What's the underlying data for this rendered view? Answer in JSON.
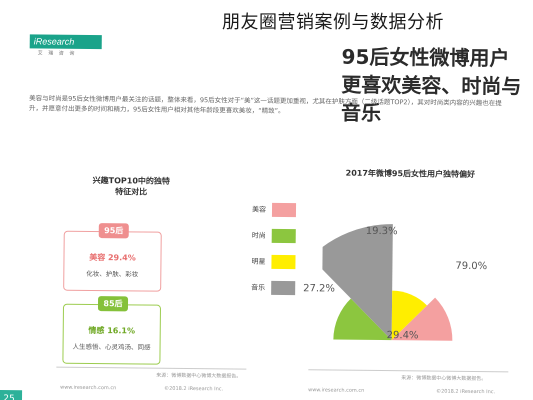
{
  "overlay_title": "朋友圈营销案例与数据分析",
  "slide": {
    "brand": "iResearch",
    "brand_sub": "艾 瑞 咨 询",
    "headline": "95后女性微博用户更喜欢美容、时尚与音乐",
    "paragraph": "美容与时尚是95后女性微博用户最关注的话题，整体来看，95后女性对于“美”这一话题更加重视，尤其在护肤方面（二级话题TOP2），其对时尚类内容的兴趣也在提升，并愿意付出更多的时间和精力，95后女性用户相对其他年龄段更喜欢美妆，“精致”。",
    "left_title": "兴趣TOP10中的独特特征对比",
    "cards": [
      {
        "tag": "95后",
        "line1": "美容 29.4%",
        "line2": "化妆、护肤、彩妆"
      },
      {
        "tag": "85后",
        "line1": "情感 16.1%",
        "line2": "人生感悟、心灵鸡汤、同感"
      }
    ],
    "footer_source": "来源：微博数据中心微博大数据报告。",
    "footer_copyright": "©2018.2 iResearch Inc.",
    "footer_url": "www.iresearch.com.cn",
    "page_number": "25"
  },
  "chart_data": {
    "type": "pie",
    "title": "2017年微博95后女性用户独特偏好",
    "legend_placement": "left",
    "series": [
      {
        "name": "美容",
        "value": 29.4,
        "label": "29.4%",
        "color": "#f4a0a0"
      },
      {
        "name": "时尚",
        "value": 27.2,
        "label": "27.2%",
        "color": "#8cc63f"
      },
      {
        "name": "明星",
        "value": 19.3,
        "label": "19.3%",
        "color": "#ffee00"
      },
      {
        "name": "音乐",
        "value": 79.0,
        "label": "79.0%",
        "color": "#999999"
      }
    ]
  }
}
